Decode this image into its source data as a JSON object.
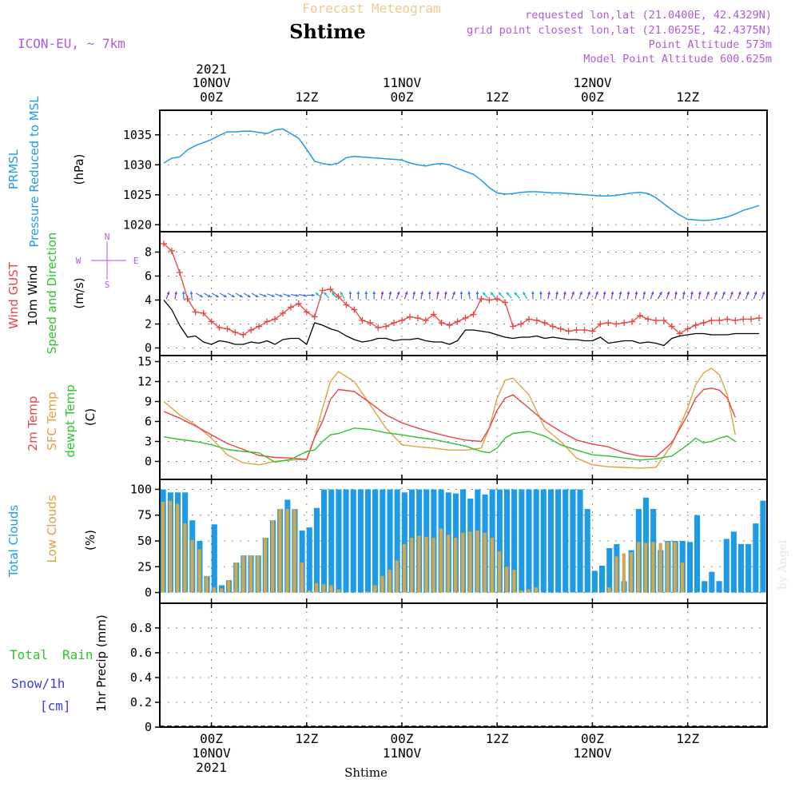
{
  "header": {
    "product": "Forecast Meteogram",
    "location": "Shtime",
    "model": "ICON-EU, ~ 7km",
    "requested": "requested lon,lat (21.0400E, 42.4329N)",
    "grid_point": "grid point closest lon,lat (21.0625E, 42.4375N)",
    "point_alt": "Point Altitude 573m",
    "model_alt": "Model Point Altitude 600.625m",
    "footer_location": "Shtime",
    "watermark": "by Angel"
  },
  "colors": {
    "pressure": "#1e9be6",
    "gust": "#e84545",
    "wind10m": "#000000",
    "temp2m": "#e84545",
    "sfc_temp": "#e0a23c",
    "dewpoint": "#2fc22f",
    "total_clouds": "#1e9be6",
    "low_clouds": "#d4a84a",
    "rain": "#2fc22f",
    "snow": "#3a3ae8",
    "label_purple": "#b05ad8"
  },
  "time_axis": {
    "year": "2021",
    "ticks": [
      {
        "hour": 6,
        "time": "00Z",
        "date": "10NOV",
        "year": "2021"
      },
      {
        "hour": 18,
        "time": "12Z",
        "date": "",
        "year": ""
      },
      {
        "hour": 30,
        "time": "00Z",
        "date": "11NOV",
        "year": ""
      },
      {
        "hour": 42,
        "time": "12Z",
        "date": "",
        "year": ""
      },
      {
        "hour": 54,
        "time": "00Z",
        "date": "12NOV",
        "year": ""
      },
      {
        "hour": 66,
        "time": "12Z",
        "date": "",
        "year": ""
      }
    ]
  },
  "panels": {
    "pressure": {
      "labels": [
        "PRMSL",
        "Pressure Reduced to MSL"
      ],
      "unit": "(hPa)",
      "ylim": [
        1019.5,
        1037.5
      ],
      "ticks": [
        "1020",
        "1025",
        "1030",
        "1035"
      ]
    },
    "wind": {
      "labels": [
        "Wind GUST",
        "10m Wind",
        "Speed and Direction"
      ],
      "unit": "(m/s)",
      "ylim": [
        -0.3,
        9.3
      ],
      "ticks": [
        "0",
        "2",
        "4",
        "6",
        "8"
      ],
      "compass": {
        "north": "N",
        "south": "S",
        "west": "W",
        "east": "E"
      }
    },
    "temp": {
      "labels": [
        "2m Temp",
        "SFC Temp",
        "dewpt Temp"
      ],
      "unit": "(C)",
      "ylim": [
        -1.5,
        15.3
      ],
      "ticks": [
        "0",
        "3",
        "6",
        "9",
        "12",
        "15"
      ]
    },
    "clouds": {
      "labels": [
        "Total Clouds",
        "Low Clouds"
      ],
      "unit": "(%)",
      "ylim": [
        -5,
        105
      ],
      "ticks": [
        "0",
        "25",
        "50",
        "75",
        "100"
      ]
    },
    "precip": {
      "labels": [
        "Total",
        "Rain",
        "Snow/1h",
        "[cm]"
      ],
      "unit": "1hr Precip (mm)",
      "ylim": [
        0,
        0.98
      ],
      "ticks": [
        "0",
        "0.2",
        "0.4",
        "0.6",
        "0.8"
      ]
    }
  },
  "chart_data": {
    "type": "line",
    "x_unit": "hour since 2021-11-09 18Z",
    "x_range": [
      -0.5,
      76
    ],
    "pressure": {
      "x": [
        0,
        1,
        2,
        3,
        4,
        5,
        6,
        7,
        8,
        9,
        10,
        11,
        12,
        13,
        14,
        15,
        16,
        17,
        18,
        19,
        20,
        21,
        22,
        23,
        24,
        25,
        26,
        27,
        28,
        29,
        30,
        31,
        32,
        33,
        34,
        35,
        36,
        37,
        38,
        39,
        40,
        41,
        42,
        43,
        44,
        45,
        46,
        47,
        48,
        49,
        50,
        51,
        52,
        53,
        54,
        55,
        56,
        57,
        58,
        59,
        60,
        61,
        62,
        63,
        64,
        65,
        66,
        67,
        68,
        69,
        70,
        71,
        72,
        73,
        74,
        75
      ],
      "y": [
        1030.3,
        1031.1,
        1031.3,
        1032.5,
        1033.2,
        1033.7,
        1034.2,
        1034.9,
        1035.5,
        1035.5,
        1035.6,
        1035.6,
        1035.4,
        1035.2,
        1035.8,
        1036.0,
        1035.2,
        1034.4,
        1032.6,
        1030.6,
        1030.2,
        1030.0,
        1030.3,
        1031.2,
        1031.4,
        1031.3,
        1031.2,
        1031.1,
        1031.0,
        1030.9,
        1030.8,
        1030.3,
        1030.0,
        1029.8,
        1030.1,
        1030.2,
        1030.0,
        1029.4,
        1028.9,
        1028.4,
        1027.4,
        1026.2,
        1025.3,
        1025.1,
        1025.2,
        1025.4,
        1025.5,
        1025.5,
        1025.4,
        1025.3,
        1025.3,
        1025.2,
        1025.1,
        1025.0,
        1024.9,
        1024.8,
        1024.8,
        1024.9,
        1025.1,
        1025.3,
        1025.4,
        1025.2,
        1024.5,
        1023.5,
        1022.5,
        1021.6,
        1020.9,
        1020.8,
        1020.7,
        1020.8,
        1021.0,
        1021.3,
        1021.8,
        1022.4,
        1022.8,
        1023.2
      ]
    },
    "wind_gust": {
      "x": [
        0,
        1,
        2,
        3,
        4,
        5,
        6,
        7,
        8,
        9,
        10,
        11,
        12,
        13,
        14,
        15,
        16,
        17,
        18,
        19,
        20,
        21,
        22,
        23,
        24,
        25,
        26,
        27,
        28,
        29,
        30,
        31,
        32,
        33,
        34,
        35,
        36,
        37,
        38,
        39,
        40,
        41,
        42,
        43,
        44,
        45,
        46,
        47,
        48,
        49,
        50,
        51,
        52,
        53,
        54,
        55,
        56,
        57,
        58,
        59,
        60,
        61,
        62,
        63,
        64,
        65,
        66,
        67,
        68,
        69,
        70,
        71,
        72,
        73,
        74,
        75
      ],
      "y": [
        8.7,
        8.1,
        6.3,
        4.1,
        3.0,
        2.9,
        2.2,
        1.7,
        1.6,
        1.3,
        1.1,
        1.5,
        1.8,
        2.2,
        2.4,
        2.9,
        3.4,
        3.7,
        3.0,
        2.6,
        4.8,
        4.9,
        4.3,
        3.6,
        3.2,
        2.3,
        2.1,
        1.7,
        1.8,
        2.1,
        2.3,
        2.6,
        2.5,
        2.3,
        2.8,
        2.1,
        1.9,
        2.2,
        2.5,
        2.8,
        4.1,
        4.0,
        4.1,
        3.8,
        1.8,
        2.0,
        2.4,
        2.3,
        2.1,
        1.8,
        1.6,
        1.4,
        1.5,
        1.5,
        1.4,
        2.0,
        2.1,
        2.0,
        2.1,
        2.2,
        2.7,
        2.4,
        2.3,
        2.3,
        1.8,
        1.2,
        1.6,
        1.9,
        2.1,
        2.3,
        2.3,
        2.4,
        2.3,
        2.4,
        2.4,
        2.5
      ]
    },
    "wind_10m": {
      "x": [
        0,
        1,
        2,
        3,
        4,
        5,
        6,
        7,
        8,
        9,
        10,
        11,
        12,
        13,
        14,
        15,
        16,
        17,
        18,
        19,
        20,
        21,
        22,
        23,
        24,
        25,
        26,
        27,
        28,
        29,
        30,
        31,
        32,
        33,
        34,
        35,
        36,
        37,
        38,
        39,
        40,
        41,
        42,
        43,
        44,
        45,
        46,
        47,
        48,
        49,
        50,
        51,
        52,
        53,
        54,
        55,
        56,
        57,
        58,
        59,
        60,
        61,
        62,
        63,
        64,
        65,
        66,
        67,
        68,
        69,
        70,
        71,
        72,
        73,
        74,
        75
      ],
      "y": [
        4.0,
        3.2,
        1.9,
        0.9,
        1.0,
        0.5,
        0.3,
        0.6,
        0.5,
        0.3,
        0.3,
        0.5,
        0.4,
        0.6,
        0.3,
        0.7,
        0.8,
        0.8,
        0.3,
        2.1,
        1.9,
        1.6,
        1.4,
        1.0,
        0.7,
        0.5,
        0.6,
        0.8,
        0.8,
        0.6,
        0.7,
        0.7,
        0.8,
        0.6,
        0.5,
        0.5,
        0.3,
        0.6,
        1.5,
        1.5,
        1.4,
        1.3,
        1.1,
        0.9,
        0.8,
        0.9,
        0.9,
        1.0,
        0.8,
        0.9,
        0.8,
        0.7,
        0.7,
        0.6,
        0.6,
        0.9,
        0.4,
        0.5,
        0.6,
        0.6,
        0.4,
        0.5,
        0.4,
        0.2,
        0.8,
        1.0,
        1.1,
        1.2,
        1.2,
        1.1,
        1.1,
        1.1,
        1.2,
        1.2,
        1.2,
        1.2
      ]
    },
    "wind_dir_deg": [
      200,
      190,
      180,
      175,
      300,
      300,
      300,
      300,
      300,
      300,
      300,
      300,
      290,
      290,
      290,
      290,
      280,
      280,
      270,
      130,
      140,
      140,
      150,
      180,
      180,
      180,
      180,
      190,
      190,
      200,
      200,
      190,
      190,
      180,
      190,
      190,
      200,
      180,
      170,
      180,
      140,
      140,
      140,
      140,
      140,
      150,
      180,
      180,
      190,
      190,
      190,
      200,
      200,
      200,
      200,
      190,
      190,
      190,
      190,
      190,
      190,
      200,
      210,
      200,
      190,
      190,
      190,
      190,
      200,
      200,
      200,
      200,
      200,
      200,
      200,
      200
    ],
    "temp_2m": {
      "x": [
        0,
        2,
        4,
        6,
        8,
        10,
        12,
        14,
        16,
        18,
        19,
        20,
        21,
        22,
        24,
        26,
        28,
        30,
        32,
        34,
        36,
        38,
        40,
        41,
        42,
        43,
        44,
        46,
        48,
        50,
        52,
        54,
        56,
        58,
        60,
        62,
        64,
        66,
        67,
        68,
        69,
        70,
        71,
        72
      ],
      "y": [
        7.5,
        6.5,
        5.3,
        4.0,
        2.7,
        1.8,
        0.9,
        0.6,
        0.5,
        0.3,
        3.6,
        6.0,
        9.3,
        10.8,
        10.5,
        8.8,
        7.0,
        5.8,
        5.0,
        4.3,
        3.7,
        3.2,
        3.0,
        5.0,
        7.7,
        9.5,
        10.0,
        8.0,
        6.0,
        4.5,
        3.2,
        2.6,
        2.2,
        1.3,
        0.8,
        0.7,
        2.8,
        7.0,
        9.5,
        10.8,
        11.0,
        10.7,
        9.5,
        6.6
      ]
    },
    "temp_sfc": {
      "x": [
        0,
        2,
        4,
        6,
        8,
        10,
        12,
        14,
        16,
        18,
        19,
        20,
        21,
        22,
        24,
        26,
        28,
        30,
        32,
        34,
        36,
        38,
        40,
        41,
        42,
        43,
        44,
        46,
        48,
        50,
        52,
        54,
        56,
        58,
        60,
        62,
        64,
        66,
        67,
        68,
        69,
        70,
        71,
        72
      ],
      "y": [
        9.0,
        7.0,
        5.5,
        3.5,
        1.0,
        -0.2,
        -0.5,
        0.0,
        0.2,
        0.3,
        3.5,
        8.0,
        12.0,
        13.5,
        12.0,
        8.5,
        5.0,
        2.5,
        2.2,
        2.0,
        1.7,
        1.7,
        2.0,
        5.0,
        9.5,
        12.2,
        12.5,
        10.0,
        5.0,
        3.0,
        0.5,
        -0.5,
        -0.8,
        -0.9,
        -1.0,
        -0.9,
        2.5,
        8.0,
        11.5,
        13.3,
        14.0,
        13.0,
        10.0,
        4.0
      ]
    },
    "temp_dew": {
      "x": [
        0,
        2,
        4,
        6,
        8,
        10,
        12,
        14,
        16,
        18,
        19,
        20,
        21,
        22,
        24,
        26,
        28,
        30,
        32,
        34,
        36,
        38,
        40,
        41,
        42,
        43,
        44,
        46,
        48,
        50,
        52,
        54,
        56,
        58,
        60,
        62,
        64,
        66,
        67,
        68,
        69,
        70,
        71,
        72
      ],
      "y": [
        3.7,
        3.3,
        3.0,
        2.5,
        1.8,
        1.5,
        1.3,
        -0.1,
        0.3,
        1.5,
        1.7,
        3.0,
        4.0,
        4.2,
        5.0,
        4.8,
        4.3,
        4.0,
        3.6,
        3.3,
        2.8,
        2.3,
        1.5,
        1.3,
        2.0,
        3.5,
        4.2,
        4.5,
        3.8,
        2.5,
        1.7,
        1.0,
        0.8,
        0.5,
        0.2,
        0.4,
        0.8,
        2.5,
        3.5,
        2.8,
        3.0,
        3.5,
        3.8,
        3.0
      ]
    },
    "clouds_total": [
      100,
      97,
      97,
      97,
      70,
      50,
      16,
      66,
      7,
      12,
      29,
      36,
      36,
      36,
      53,
      70,
      81,
      90,
      81,
      60,
      63,
      82,
      100,
      100,
      100,
      100,
      100,
      100,
      100,
      100,
      100,
      100,
      100,
      97,
      100,
      100,
      100,
      100,
      100,
      97,
      96,
      100,
      91,
      100,
      95,
      100,
      100,
      100,
      100,
      100,
      100,
      100,
      100,
      100,
      100,
      100,
      100,
      100,
      81,
      21,
      26,
      43,
      47,
      11,
      41,
      81,
      92,
      81,
      41,
      50,
      50,
      50,
      49,
      75,
      11,
      20,
      11,
      52,
      59,
      47,
      47,
      67,
      89
    ],
    "clouds_low": [
      88,
      89,
      86,
      67,
      51,
      42,
      16,
      5,
      4,
      12,
      29,
      36,
      36,
      36,
      53,
      70,
      81,
      81,
      81,
      29,
      2,
      9,
      8,
      7,
      3,
      0,
      0,
      0,
      1,
      7,
      16,
      22,
      31,
      47,
      53,
      55,
      54,
      53,
      62,
      56,
      53,
      58,
      59,
      60,
      58,
      53,
      40,
      25,
      22,
      2,
      3,
      5,
      0,
      0,
      0,
      0,
      0,
      0,
      0,
      0,
      0,
      5,
      35,
      38,
      39,
      49,
      48,
      49,
      48,
      49,
      49,
      29,
      0,
      0,
      0,
      0,
      0,
      0,
      0,
      0,
      0,
      0,
      0
    ],
    "precip_total": []
  }
}
